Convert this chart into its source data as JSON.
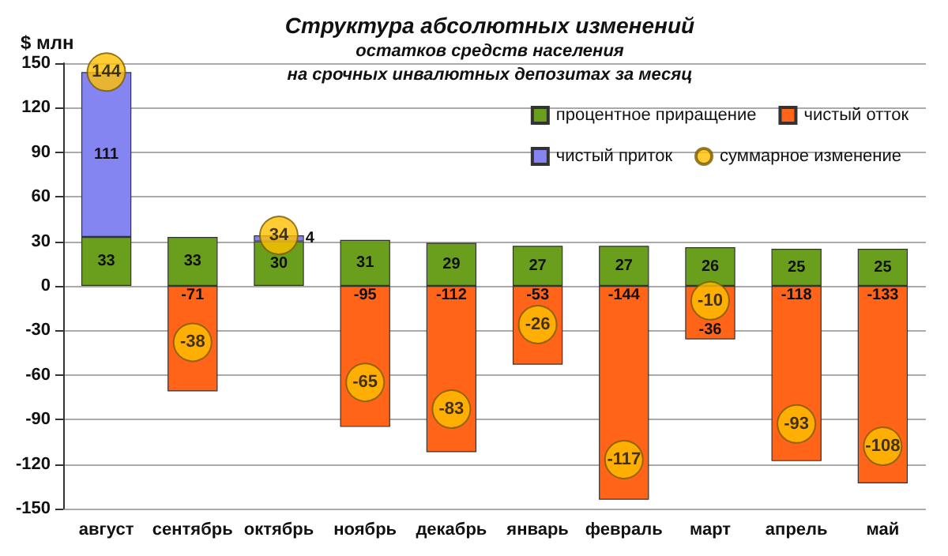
{
  "chart_data": {
    "type": "bar",
    "stacked": true,
    "title": "Структура абсолютных изменений",
    "subtitle": "остатков средств населения\nна срочных инвалютных депозитах за месяц",
    "ylabel": "$ млн",
    "categories": [
      "август",
      "сентябрь",
      "октябрь",
      "ноябрь",
      "декабрь",
      "январь",
      "февраль",
      "март",
      "апрель",
      "май"
    ],
    "series": [
      {
        "name": "процентное приращение",
        "color": "#6a9f1e",
        "values": [
          33,
          33,
          30,
          31,
          29,
          27,
          27,
          26,
          25,
          25
        ]
      },
      {
        "name": "чистый отток",
        "color": "#ff6418",
        "values": [
          null,
          -71,
          null,
          -95,
          -112,
          -53,
          -144,
          -36,
          -118,
          -133
        ]
      },
      {
        "name": "чистый приток",
        "color": "#8585f2",
        "values": [
          111,
          null,
          4,
          null,
          null,
          null,
          null,
          null,
          null,
          null
        ]
      },
      {
        "name": "суммарное изменение",
        "type": "scatter",
        "color": "#ffc000",
        "x": [
          "август",
          "сентябрь",
          "октябрь",
          "ноябрь",
          "декабрь",
          "январь",
          "февраль",
          "март",
          "апрель",
          "май"
        ],
        "values": [
          144,
          -38,
          34,
          -65,
          -83,
          -26,
          -117,
          -10,
          -93,
          -108
        ]
      }
    ],
    "ylim": [
      -150,
      150
    ],
    "yticks": [
      -150,
      -120,
      -90,
      -60,
      -30,
      0,
      30,
      60,
      90,
      120,
      150
    ],
    "grid": "y",
    "legend": "top right",
    "data_labels": true
  }
}
